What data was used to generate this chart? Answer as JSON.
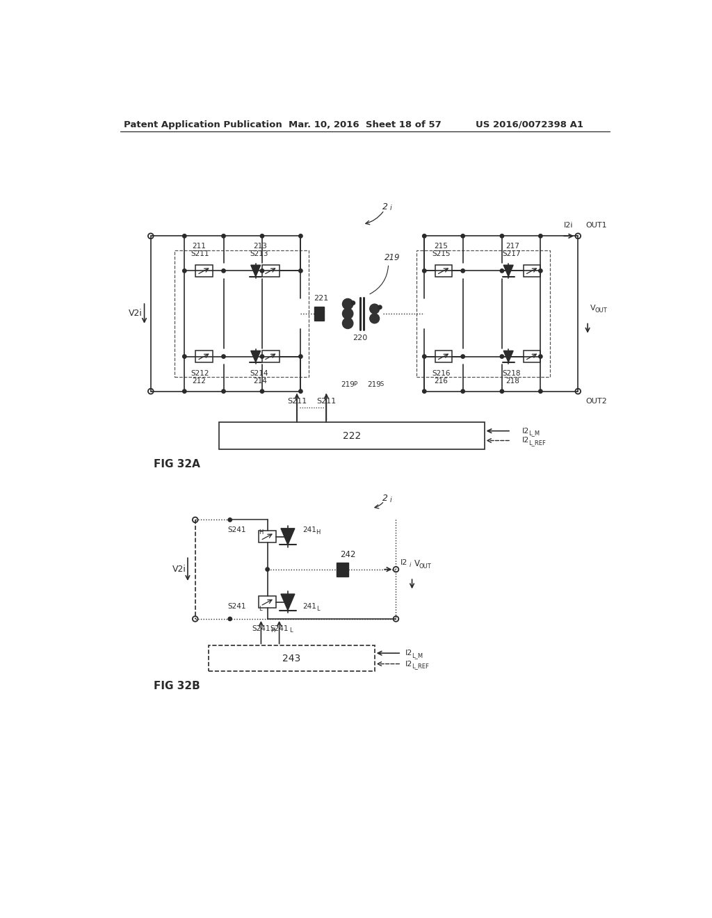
{
  "header_left": "Patent Application Publication",
  "header_mid": "Mar. 10, 2016  Sheet 18 of 57",
  "header_right": "US 2016/0072398 A1",
  "fig_a_label": "FIG 32A",
  "fig_b_label": "FIG 32B",
  "background": "#ffffff",
  "line_color": "#2a2a2a",
  "text_color": "#2a2a2a"
}
